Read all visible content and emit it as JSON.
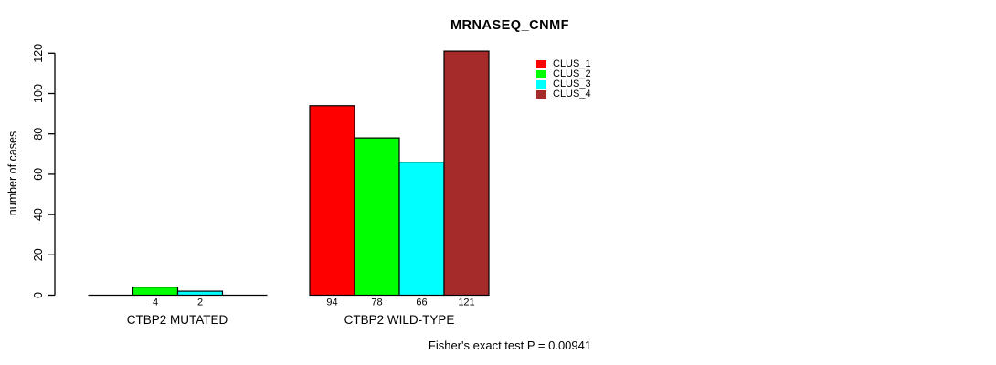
{
  "chart_data": {
    "type": "bar",
    "title": "MRNASEQ_CNMF",
    "ylabel": "number of cases",
    "xlabel": "",
    "ylim": [
      0,
      120
    ],
    "yticks": [
      0,
      20,
      40,
      60,
      80,
      100,
      120
    ],
    "grid": false,
    "legend_position": "top-right-inside",
    "categories": [
      "CTBP2 MUTATED",
      "CTBP2 WILD-TYPE"
    ],
    "series": [
      {
        "name": "CLUS_1",
        "color": "#FF0000",
        "values": [
          0,
          94
        ]
      },
      {
        "name": "CLUS_2",
        "color": "#00FF00",
        "values": [
          4,
          78
        ]
      },
      {
        "name": "CLUS_3",
        "color": "#00FFFF",
        "values": [
          2,
          66
        ]
      },
      {
        "name": "CLUS_4",
        "color": "#A52A2A",
        "values": [
          0,
          121
        ]
      }
    ],
    "bar_value_labels": {
      "CTBP2 MUTATED": [
        null,
        4,
        2,
        null
      ],
      "CTBP2 WILD-TYPE": [
        94,
        78,
        66,
        121
      ]
    },
    "annotation": "Fisher's exact test P = 0.00941"
  }
}
